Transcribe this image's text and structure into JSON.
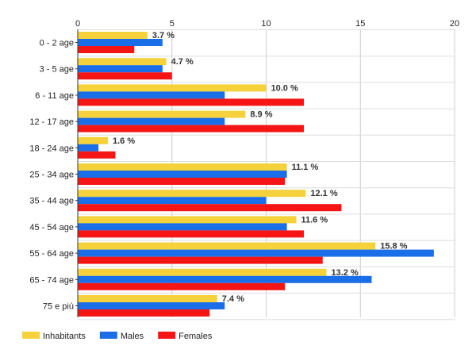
{
  "chart_data": {
    "type": "bar",
    "orientation": "horizontal",
    "categories": [
      "0 - 2 age",
      "3 - 5 age",
      "6 - 11 age",
      "12 - 17 age",
      "18 - 24 age",
      "25 - 34 age",
      "35 - 44 age",
      "45 - 54 age",
      "55 - 64 age",
      "65 - 74 age",
      "75 e più"
    ],
    "series": [
      {
        "name": "Inhabitants",
        "color": "#f5d13b",
        "values": [
          3.7,
          4.7,
          10.0,
          8.9,
          1.6,
          11.1,
          12.1,
          11.6,
          15.8,
          13.2,
          7.4
        ]
      },
      {
        "name": "Males",
        "color": "#1a6fe8",
        "values": [
          4.5,
          4.5,
          7.8,
          7.8,
          1.1,
          11.1,
          10.0,
          11.1,
          18.9,
          15.6,
          7.8
        ]
      },
      {
        "name": "Females",
        "color": "#f61515",
        "values": [
          3.0,
          5.0,
          12.0,
          12.0,
          2.0,
          11.0,
          14.0,
          12.0,
          13.0,
          11.0,
          7.0
        ]
      }
    ],
    "data_labels": [
      "3.7 %",
      "4.7 %",
      "10.0 %",
      "8.9 %",
      "1.6 %",
      "11.1 %",
      "12.1 %",
      "11.6 %",
      "15.8 %",
      "13.2 %",
      "7.4 %"
    ],
    "x_ticks": [
      "0",
      "5",
      "10",
      "15",
      "20"
    ],
    "xlim": [
      0,
      20
    ],
    "grid": true,
    "legend_position": "bottom-left"
  }
}
